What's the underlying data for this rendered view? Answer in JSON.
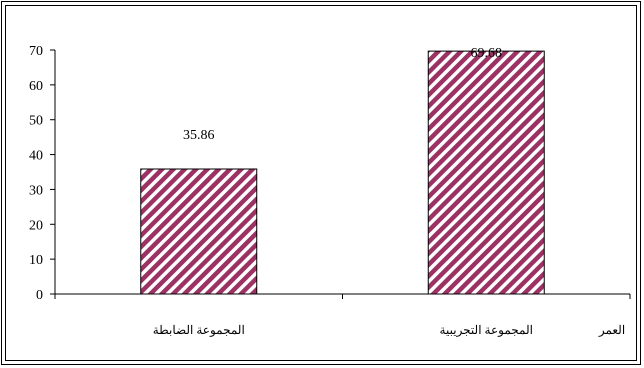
{
  "chart_data": {
    "type": "bar",
    "categories": [
      "المجموعة الضابطة",
      "المجموعة التجريبية"
    ],
    "values": [
      35.86,
      69.68
    ],
    "data_labels": [
      "35.86",
      "69.68"
    ],
    "extra_label": "العمر",
    "ylim": [
      0,
      70
    ],
    "yticks": [
      "0",
      "10",
      "20",
      "30",
      "40",
      "50",
      "60",
      "70"
    ],
    "grid": false,
    "bar_fill": "#9b3263",
    "bar_stripe": "#ffffff"
  }
}
